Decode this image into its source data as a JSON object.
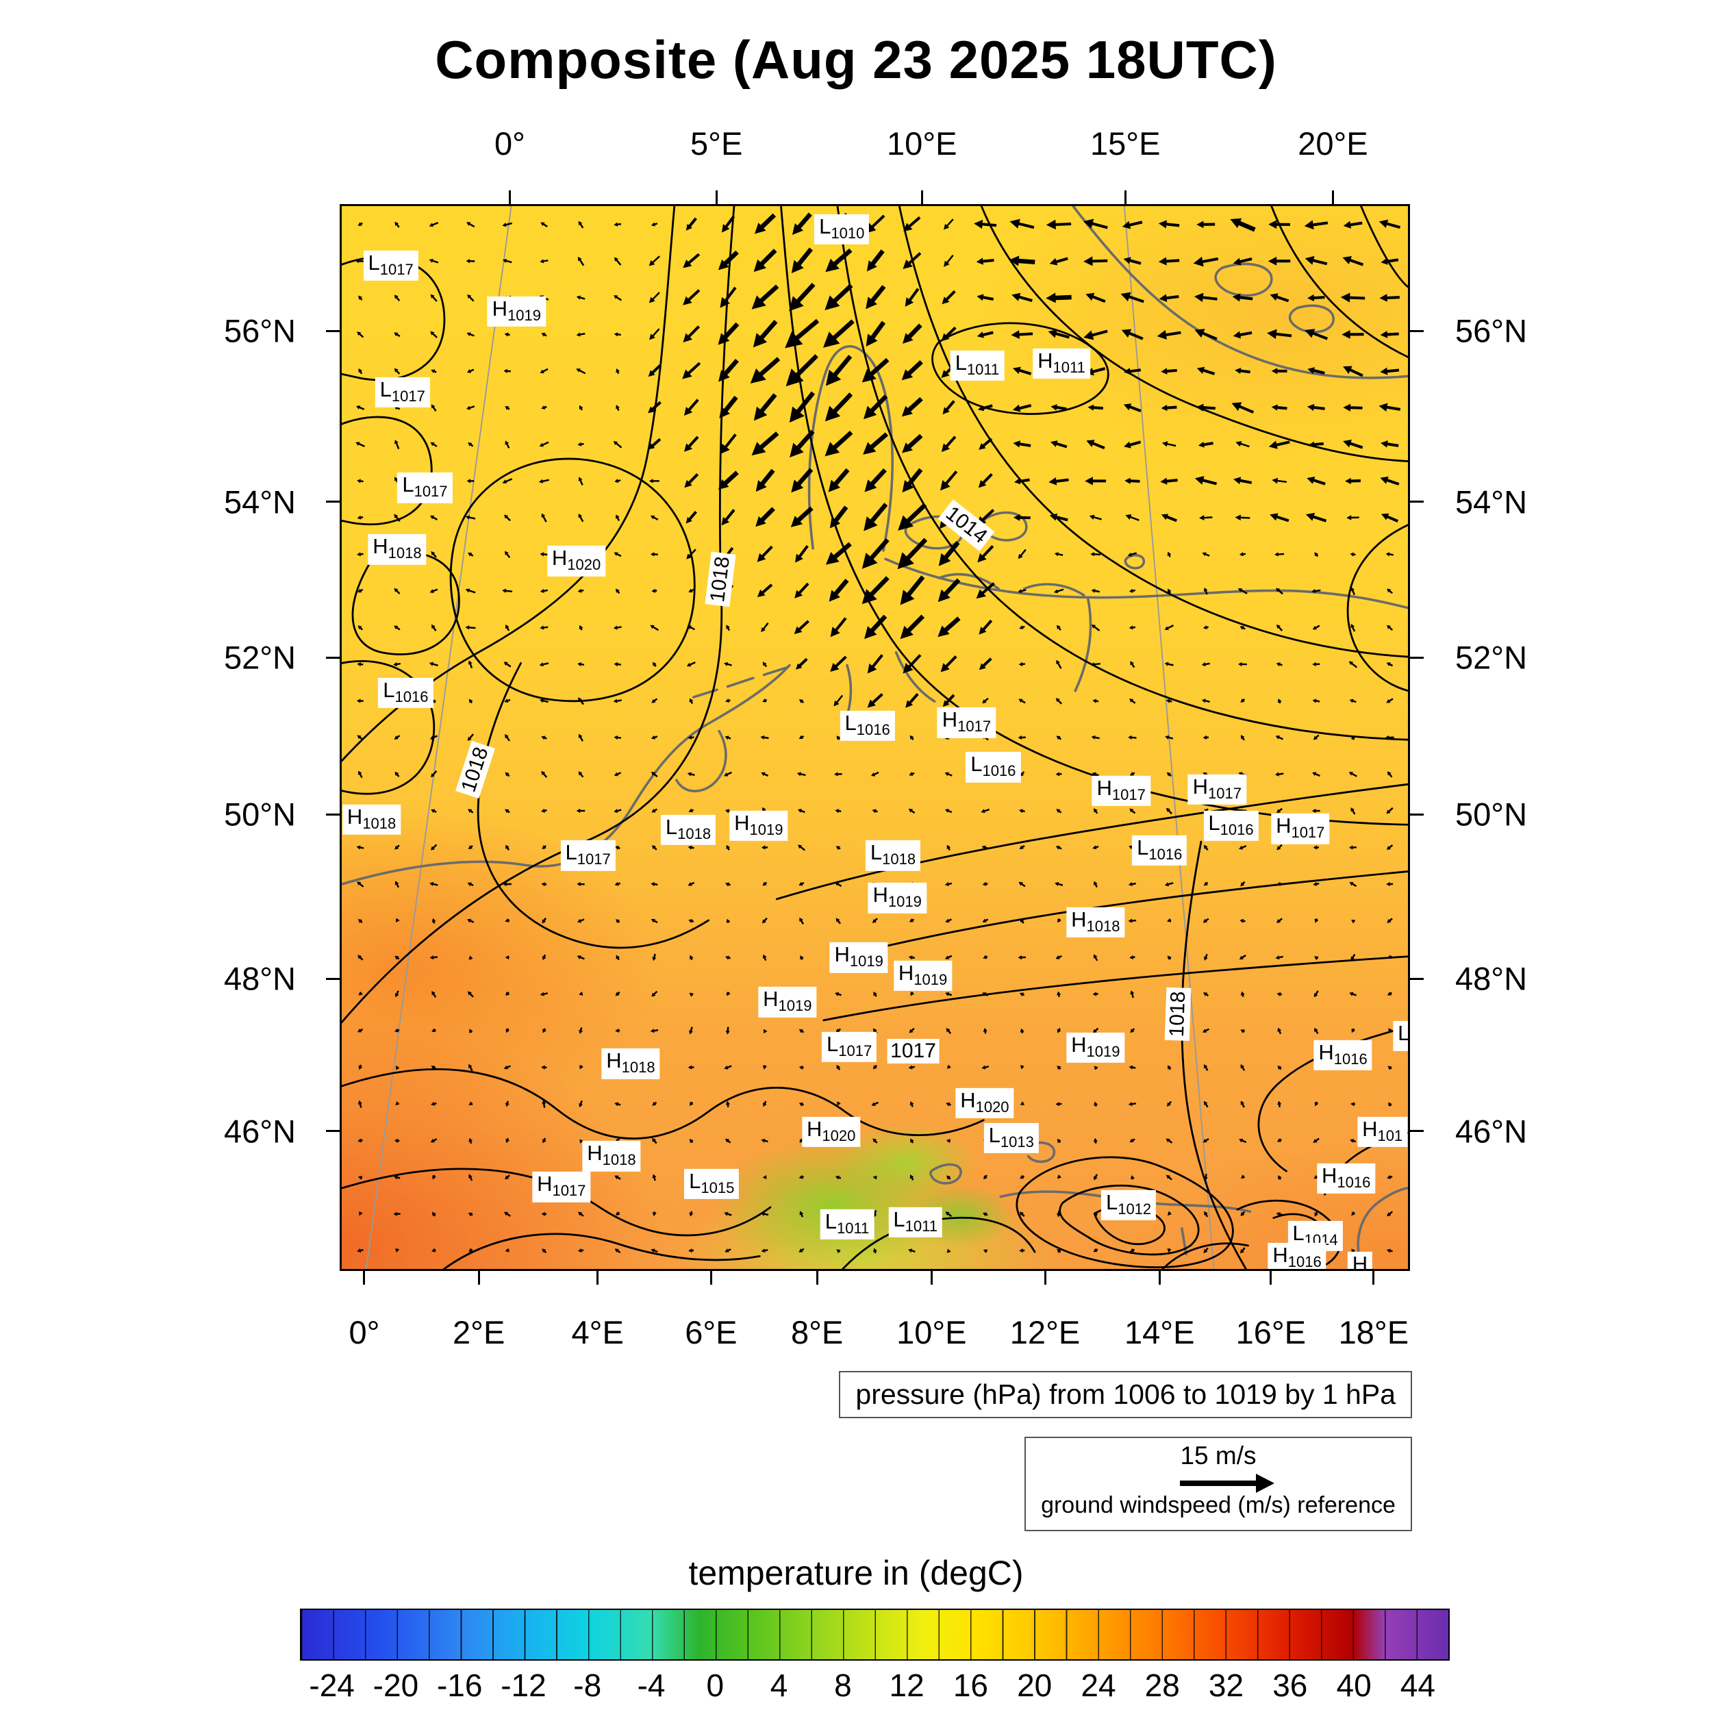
{
  "title": "Composite (Aug 23 2025 18UTC)",
  "caption": "pressure (hPa) from 1006 to 1019 by 1 hPa",
  "wind_legend": {
    "speed": "15 m/s",
    "label": "ground windspeed (m/s) reference"
  },
  "colorbar": {
    "title": "temperature in (degC)",
    "min": -26,
    "max": 46,
    "cell": 2,
    "ticks": [
      -24,
      -20,
      -16,
      -12,
      -8,
      -4,
      0,
      4,
      8,
      12,
      16,
      20,
      24,
      28,
      32,
      36,
      40,
      44
    ],
    "stops": [
      {
        "v": -26,
        "c": "#2b2bd5"
      },
      {
        "v": -21,
        "c": "#2450ee"
      },
      {
        "v": -16,
        "c": "#2e86f2"
      },
      {
        "v": -12,
        "c": "#19b0f0"
      },
      {
        "v": -8,
        "c": "#0fd2e2"
      },
      {
        "v": -4,
        "c": "#35dcae"
      },
      {
        "v": -1,
        "c": "#2cb42c"
      },
      {
        "v": 2,
        "c": "#55c31e"
      },
      {
        "v": 6,
        "c": "#8fd41e"
      },
      {
        "v": 10,
        "c": "#c8e414"
      },
      {
        "v": 13,
        "c": "#f0ef0f"
      },
      {
        "v": 16,
        "c": "#ffe400"
      },
      {
        "v": 20,
        "c": "#ffc800"
      },
      {
        "v": 24,
        "c": "#ffa200"
      },
      {
        "v": 28,
        "c": "#ff7a00"
      },
      {
        "v": 32,
        "c": "#f74b00"
      },
      {
        "v": 36,
        "c": "#e01d00"
      },
      {
        "v": 40,
        "c": "#b00000"
      },
      {
        "v": 42,
        "c": "#953fb4"
      },
      {
        "v": 46,
        "c": "#6a2db0"
      }
    ]
  },
  "axes": {
    "top": [
      {
        "label": "0°",
        "f": 0.159
      },
      {
        "label": "5°E",
        "f": 0.352
      },
      {
        "label": "10°E",
        "f": 0.544
      },
      {
        "label": "15°E",
        "f": 0.734
      },
      {
        "label": "20°E",
        "f": 0.928
      }
    ],
    "bottom": [
      {
        "label": "0°",
        "f": 0.023
      },
      {
        "label": "2°E",
        "f": 0.13
      },
      {
        "label": "4°E",
        "f": 0.241
      },
      {
        "label": "6°E",
        "f": 0.347
      },
      {
        "label": "8°E",
        "f": 0.446
      },
      {
        "label": "10°E",
        "f": 0.553
      },
      {
        "label": "12°E",
        "f": 0.659
      },
      {
        "label": "14°E",
        "f": 0.766
      },
      {
        "label": "16°E",
        "f": 0.87
      },
      {
        "label": "18°E",
        "f": 0.966
      }
    ],
    "left": [
      {
        "label": "56°N",
        "f": 0.119
      },
      {
        "label": "54°N",
        "f": 0.279
      },
      {
        "label": "52°N",
        "f": 0.425
      },
      {
        "label": "50°N",
        "f": 0.572
      },
      {
        "label": "48°N",
        "f": 0.726
      },
      {
        "label": "46°N",
        "f": 0.869
      }
    ],
    "right": [
      {
        "label": "56°N",
        "f": 0.119
      },
      {
        "label": "54°N",
        "f": 0.279
      },
      {
        "label": "52°N",
        "f": 0.425
      },
      {
        "label": "50°N",
        "f": 0.572
      },
      {
        "label": "48°N",
        "f": 0.726
      },
      {
        "label": "46°N",
        "f": 0.869
      }
    ]
  },
  "wind_field": {
    "cols": 29,
    "rows": 29,
    "reference_speed_m_s": 15
  },
  "chart_data": {
    "type": "heatmap",
    "title": "Composite (Aug 23 2025 18UTC)",
    "x_ticks_top": [
      "0°",
      "5°E",
      "10°E",
      "15°E",
      "20°E"
    ],
    "x_ticks_bottom": [
      "0°",
      "2°E",
      "4°E",
      "6°E",
      "8°E",
      "10°E",
      "12°E",
      "14°E",
      "16°E",
      "18°E"
    ],
    "y_ticks": [
      "56°N",
      "54°N",
      "52°N",
      "50°N",
      "48°N",
      "46°N"
    ],
    "temperature_degC": {
      "colorbar_title": "temperature in (degC)",
      "tick_min": -24,
      "tick_max": 44,
      "tick_step": 4
    },
    "pressure_hPa": {
      "caption": "pressure (hPa) from 1006 to 1019 by 1 hPa",
      "from": 1006,
      "to": 1019,
      "by": 1
    },
    "wind": {
      "reference_speed_m_s": 15,
      "reference_label": "ground windspeed (m/s) reference"
    },
    "pressure_centers": [
      {
        "t": "L",
        "v": "1017",
        "x": 4.6,
        "y": 5.6
      },
      {
        "t": "H",
        "v": "1019",
        "x": 16.4,
        "y": 9.9
      },
      {
        "t": "L",
        "v": "1010",
        "x": 46.9,
        "y": 2.2
      },
      {
        "t": "L",
        "v": "1017",
        "x": 5.7,
        "y": 17.5
      },
      {
        "t": "L",
        "v": "1011",
        "x": 59.6,
        "y": 15.0
      },
      {
        "t": "H",
        "v": "1011",
        "x": 67.5,
        "y": 14.8
      },
      {
        "t": "L",
        "v": "1017",
        "x": 7.8,
        "y": 26.5
      },
      {
        "t": "H",
        "v": "1018",
        "x": 5.2,
        "y": 32.3
      },
      {
        "t": "H",
        "v": "1020",
        "x": 22.0,
        "y": 33.4
      },
      {
        "t": "L",
        "v": "1016",
        "x": 6.0,
        "y": 45.8
      },
      {
        "t": "L",
        "v": "1016",
        "x": 49.3,
        "y": 48.9
      },
      {
        "t": "H",
        "v": "1017",
        "x": 58.6,
        "y": 48.6
      },
      {
        "t": "L",
        "v": "1016",
        "x": 61.1,
        "y": 52.8
      },
      {
        "t": "H",
        "v": "1017",
        "x": 73.1,
        "y": 55.0
      },
      {
        "t": "H",
        "v": "1017",
        "x": 82.1,
        "y": 54.9
      },
      {
        "t": "L",
        "v": "1016",
        "x": 83.4,
        "y": 58.3
      },
      {
        "t": "H",
        "v": "1017",
        "x": 89.9,
        "y": 58.6
      },
      {
        "t": "H",
        "v": "1018",
        "x": 2.8,
        "y": 57.7
      },
      {
        "t": "L",
        "v": "1018",
        "x": 32.5,
        "y": 58.7
      },
      {
        "t": "H",
        "v": "1019",
        "x": 39.1,
        "y": 58.3
      },
      {
        "t": "L",
        "v": "1017",
        "x": 23.1,
        "y": 61.1
      },
      {
        "t": "L",
        "v": "1018",
        "x": 51.7,
        "y": 61.1
      },
      {
        "t": "H",
        "v": "1019",
        "x": 52.1,
        "y": 65.1
      },
      {
        "t": "L",
        "v": "1016",
        "x": 76.7,
        "y": 60.6
      },
      {
        "t": "H",
        "v": "1018",
        "x": 70.7,
        "y": 67.4
      },
      {
        "t": "H",
        "v": "1019",
        "x": 48.5,
        "y": 70.7
      },
      {
        "t": "H",
        "v": "1019",
        "x": 54.5,
        "y": 72.4
      },
      {
        "t": "H",
        "v": "1019",
        "x": 41.8,
        "y": 74.9
      },
      {
        "t": "L",
        "v": "1017",
        "x": 47.6,
        "y": 79.1
      },
      {
        "t": "H",
        "v": "1019",
        "x": 70.7,
        "y": 79.2
      },
      {
        "t": "H",
        "v": "1018",
        "x": 27.1,
        "y": 80.7
      },
      {
        "t": "H",
        "v": "1020",
        "x": 60.3,
        "y": 84.4
      },
      {
        "t": "H",
        "v": "1020",
        "x": 45.9,
        "y": 87.1
      },
      {
        "t": "L",
        "v": "1013",
        "x": 62.8,
        "y": 87.7
      },
      {
        "t": "H",
        "v": "1018",
        "x": 25.3,
        "y": 89.4
      },
      {
        "t": "L",
        "v": "1015",
        "x": 34.7,
        "y": 92.0
      },
      {
        "t": "H",
        "v": "1017",
        "x": 20.6,
        "y": 92.3
      },
      {
        "t": "L",
        "v": "1011",
        "x": 47.4,
        "y": 95.8
      },
      {
        "t": "L",
        "v": "1011",
        "x": 53.8,
        "y": 95.6
      },
      {
        "t": "L",
        "v": "1012",
        "x": 73.8,
        "y": 94.0
      },
      {
        "t": "H",
        "v": "1016",
        "x": 93.9,
        "y": 79.9
      },
      {
        "t": "L",
        "v": "",
        "x": 99.6,
        "y": 78.1
      },
      {
        "t": "H",
        "v": "101",
        "x": 97.6,
        "y": 87.1
      },
      {
        "t": "H",
        "v": "1016",
        "x": 94.2,
        "y": 91.5
      },
      {
        "t": "L",
        "v": "1014",
        "x": 91.3,
        "y": 96.9
      },
      {
        "t": "H",
        "v": "1016",
        "x": 89.6,
        "y": 99.0
      },
      {
        "t": "H",
        "v": "",
        "x": 95.5,
        "y": 99.8
      }
    ],
    "contour_inline_labels": [
      {
        "v": "1014",
        "x": 58.6,
        "y": 30.0,
        "rot": 38
      },
      {
        "v": "1018",
        "x": 35.5,
        "y": 35.1,
        "rot": -83
      },
      {
        "v": "1018",
        "x": 12.5,
        "y": 53.0,
        "rot": -72
      },
      {
        "v": "1018",
        "x": 78.4,
        "y": 76.0,
        "rot": -88
      },
      {
        "v": "1017",
        "x": 53.6,
        "y": 79.5,
        "rot": 0
      }
    ]
  }
}
